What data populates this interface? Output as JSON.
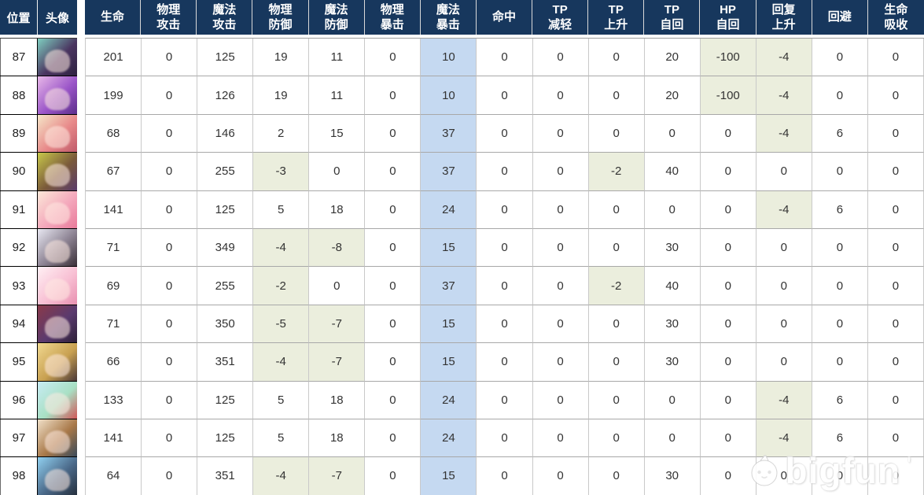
{
  "colors": {
    "header_bg": "#17375d",
    "header_text": "#ffffff",
    "blue_cell": "#c5d9f1",
    "green_cell": "#ebeedd"
  },
  "watermark": {
    "text": "bigfun",
    "spark": "＇",
    "logo_icon": "bigfun-mascot"
  },
  "table": {
    "left_headers": [
      {
        "key": "position",
        "label": "位置"
      },
      {
        "key": "avatar",
        "label": "头像"
      }
    ],
    "columns": [
      {
        "key": "hp",
        "label": "生命"
      },
      {
        "key": "phys-atk",
        "label": "物理\n攻击"
      },
      {
        "key": "magic-atk",
        "label": "魔法\n攻击"
      },
      {
        "key": "phys-def",
        "label": "物理\n防御"
      },
      {
        "key": "magic-def",
        "label": "魔法\n防御"
      },
      {
        "key": "phys-crit",
        "label": "物理\n暴击"
      },
      {
        "key": "magic-crit",
        "label": "魔法\n暴击",
        "highlight": "blue"
      },
      {
        "key": "hit",
        "label": "命中"
      },
      {
        "key": "tp-reduce",
        "label": "TP\n减轻"
      },
      {
        "key": "tp-up",
        "label": "TP\n上升"
      },
      {
        "key": "tp-regen",
        "label": "TP\n自回"
      },
      {
        "key": "hp-regen",
        "label": "HP\n自回"
      },
      {
        "key": "recovery-up",
        "label": "回复\n上升"
      },
      {
        "key": "dodge",
        "label": "回避"
      },
      {
        "key": "lifesteal",
        "label": "生命\n吸收"
      }
    ],
    "rows": [
      {
        "pos": "87",
        "avatar_colors": [
          "#7fcfc0",
          "#4a3560",
          "#2e2140"
        ],
        "values": [
          201,
          0,
          125,
          19,
          11,
          0,
          10,
          0,
          0,
          0,
          20,
          -100,
          -4,
          0,
          0
        ]
      },
      {
        "pos": "88",
        "avatar_colors": [
          "#e8b8e8",
          "#9a55c8",
          "#5c2e8a"
        ],
        "values": [
          199,
          0,
          126,
          19,
          11,
          0,
          10,
          0,
          0,
          0,
          20,
          -100,
          -4,
          0,
          0
        ]
      },
      {
        "pos": "89",
        "avatar_colors": [
          "#f5e6c8",
          "#e88a8a",
          "#c05a6a"
        ],
        "values": [
          68,
          0,
          146,
          2,
          15,
          0,
          37,
          0,
          0,
          0,
          0,
          0,
          -4,
          6,
          0
        ]
      },
      {
        "pos": "90",
        "avatar_colors": [
          "#c8c84a",
          "#7a5a3a",
          "#5a3a6a"
        ],
        "values": [
          67,
          0,
          255,
          -3,
          0,
          0,
          37,
          0,
          0,
          -2,
          40,
          0,
          0,
          0,
          0
        ]
      },
      {
        "pos": "91",
        "avatar_colors": [
          "#fce8d8",
          "#f4a8bc",
          "#e87a9a"
        ],
        "values": [
          141,
          0,
          125,
          5,
          18,
          0,
          24,
          0,
          0,
          0,
          0,
          0,
          -4,
          6,
          0
        ]
      },
      {
        "pos": "92",
        "avatar_colors": [
          "#e8e8f2",
          "#8a8090",
          "#3a3038"
        ],
        "values": [
          71,
          0,
          349,
          -4,
          -8,
          0,
          15,
          0,
          0,
          0,
          30,
          0,
          0,
          0,
          0
        ]
      },
      {
        "pos": "93",
        "avatar_colors": [
          "#fff0f4",
          "#f8c0d4",
          "#e890b0"
        ],
        "values": [
          69,
          0,
          255,
          -2,
          0,
          0,
          37,
          0,
          0,
          -2,
          40,
          0,
          0,
          0,
          0
        ]
      },
      {
        "pos": "94",
        "avatar_colors": [
          "#8a3a4a",
          "#5a3a6e",
          "#2e2038"
        ],
        "values": [
          71,
          0,
          350,
          -5,
          -7,
          0,
          15,
          0,
          0,
          0,
          30,
          0,
          0,
          0,
          0
        ]
      },
      {
        "pos": "95",
        "avatar_colors": [
          "#f0d890",
          "#c8a050",
          "#4a3838"
        ],
        "values": [
          66,
          0,
          351,
          -4,
          -7,
          0,
          15,
          0,
          0,
          0,
          30,
          0,
          0,
          0,
          0
        ]
      },
      {
        "pos": "96",
        "avatar_colors": [
          "#c8ecf4",
          "#a8e0c4",
          "#d05858"
        ],
        "values": [
          133,
          0,
          125,
          5,
          18,
          0,
          24,
          0,
          0,
          0,
          0,
          0,
          -4,
          6,
          0
        ]
      },
      {
        "pos": "97",
        "avatar_colors": [
          "#f0e0c8",
          "#a87848",
          "#3a4a5a"
        ],
        "values": [
          141,
          0,
          125,
          5,
          18,
          0,
          24,
          0,
          0,
          0,
          0,
          0,
          -4,
          6,
          0
        ]
      },
      {
        "pos": "98",
        "avatar_colors": [
          "#90d0f0",
          "#4a6888",
          "#26303e"
        ],
        "values": [
          64,
          0,
          351,
          -4,
          -7,
          0,
          15,
          0,
          0,
          0,
          30,
          0,
          0,
          0,
          0
        ]
      }
    ]
  }
}
